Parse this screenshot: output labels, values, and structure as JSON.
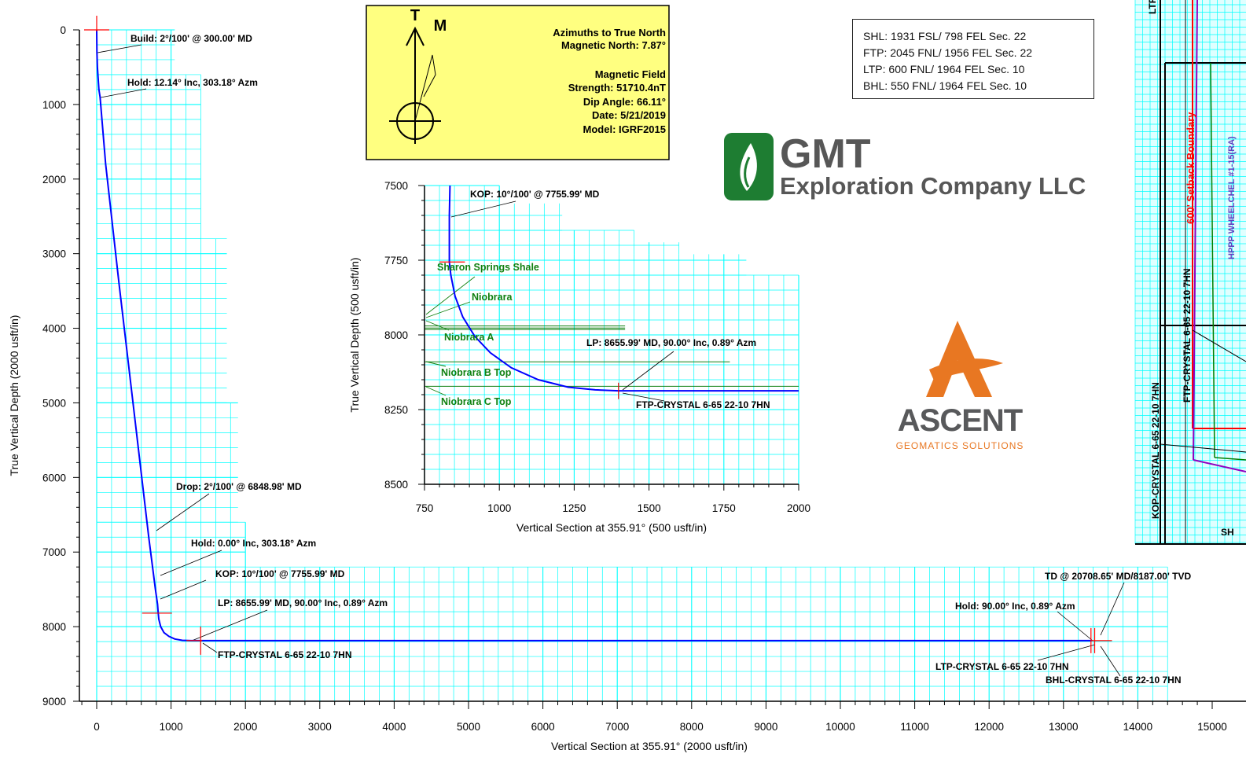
{
  "main_chart": {
    "xlabel": "Vertical Section at 355.91° (2000 usft/in)",
    "ylabel": "True Vertical Depth (2000 usft/in)"
  },
  "inset_chart": {
    "xlabel": "Vertical Section at 355.91° (500 usft/in)",
    "ylabel": "True Vertical Depth (500 usft/in)"
  },
  "main_annotations": {
    "build": "Build: 2°/100' @ 300.00' MD",
    "hold1": "Hold: 12.14° Inc, 303.18° Azm",
    "drop": "Drop: 2°/100' @ 6848.98' MD",
    "hold2": "Hold: 0.00° Inc, 303.18° Azm",
    "kop": "KOP: 10°/100' @ 7755.99' MD",
    "lp": "LP:  8655.99' MD, 90.00° Inc, 0.89° Azm",
    "ftp": "FTP-CRYSTAL  6-65  22-10  7HN",
    "td": "TD @ 20708.65' MD/8187.00' TVD",
    "hold3": "Hold: 90.00° Inc, 0.89° Azm",
    "ltp": "LTP-CRYSTAL  6-65  22-10  7HN",
    "bhl": "BHL-CRYSTAL  6-65  22-10  7HN"
  },
  "inset_annotations": {
    "kop": "KOP: 10°/100' @ 7755.99' MD",
    "sharon": "Sharon Springs Shale",
    "niobrara": "Niobrara",
    "niobrara_a": "Niobrara A",
    "lp": "LP:  8655.99' MD, 90.00° Inc, 0.89° Azm",
    "niobrara_b": "Niobrara B Top",
    "niobrara_c": "Niobrara C Top",
    "ftp": "FTP-CRYSTAL  6-65  22-10  7HN"
  },
  "north_box": {
    "t": "T",
    "m": "M",
    "lines": [
      "Azimuths to True North",
      "Magnetic North: 7.87°",
      "",
      "Magnetic Field",
      "Strength: 51710.4nT",
      "Dip Angle: 66.11°",
      "Date: 5/21/2019",
      "Model: IGRF2015"
    ]
  },
  "location_box": [
    "SHL: 1931 FSL/ 798 FEL Sec. 22",
    "FTP: 2045 FNL/ 1956 FEL Sec. 22",
    "LTP: 600 FNL/ 1964 FEL Sec. 10",
    "BHL: 550 FNL/ 1964 FEL Sec. 10"
  ],
  "logos": {
    "gmt_name": "GMT",
    "gmt_sub": "Exploration Company LLC",
    "ascent_name": "ASCENT",
    "ascent_sub": "GEOMATICS SOLUTIONS"
  },
  "plan_view": {
    "ltp_cut": "LTP",
    "setback": "600' Setback Boundary",
    "well_label": "HPPP WHEELCHEL #1-15(RA)",
    "ftp_label": "FTP-CRYSTAL  6-65  22-10  7HN",
    "kop_label": "KOP-CRYSTAL  6-65  22-10  7HN",
    "sh_cut": "SH"
  },
  "colors": {
    "grid": "#00ffff",
    "wellpath": "#0000ff",
    "marker": "#ff0000",
    "formation": "#108010",
    "north_box_bg": "#ffff80"
  },
  "chart_data": [
    {
      "type": "line",
      "name": "main_section",
      "xlabel": "Vertical Section at 355.91° (2000 usft/in)",
      "ylabel": "True Vertical Depth (2000 usft/in)",
      "xlim": [
        0,
        15000
      ],
      "ylim": [
        0,
        9000
      ],
      "y_inverted": true,
      "x_ticks": [
        0,
        1000,
        2000,
        3000,
        4000,
        5000,
        6000,
        7000,
        8000,
        9000,
        10000,
        11000,
        12000,
        13000,
        14000,
        15000
      ],
      "y_ticks": [
        0,
        1000,
        2000,
        3000,
        4000,
        5000,
        6000,
        7000,
        8000,
        9000
      ],
      "series": [
        {
          "x": [
            0,
            3,
            10,
            30,
            45,
            120,
            300,
            500,
            700,
            790,
            818,
            822,
            826,
            835,
            860,
            905,
            970,
            1050,
            1150,
            1270,
            1398,
            1600,
            3000,
            6000,
            9000,
            12000,
            13380
          ],
          "y": [
            0,
            300,
            500,
            800,
            900,
            1800,
            3400,
            5100,
            6800,
            7500,
            7700,
            7756,
            7800,
            7900,
            8000,
            8080,
            8130,
            8165,
            8183,
            8187,
            8187,
            8187,
            8187,
            8187,
            8187,
            8187,
            8187
          ]
        }
      ],
      "markers": [
        {
          "x": 0,
          "y": 0,
          "kind": "SHL"
        },
        {
          "x": 822,
          "y": 7756,
          "kind": "KOP"
        },
        {
          "x": 1398,
          "y": 8187,
          "kind": "FTP"
        },
        {
          "x": 13370,
          "y": 8187,
          "kind": "LTP"
        },
        {
          "x": 13420,
          "y": 8187,
          "kind": "BHL"
        }
      ]
    },
    {
      "type": "line",
      "name": "inset_section",
      "xlabel": "Vertical Section at 355.91° (500 usft/in)",
      "ylabel": "True Vertical Depth (500 usft/in)",
      "xlim": [
        750,
        2000
      ],
      "ylim": [
        7500,
        8500
      ],
      "y_inverted": true,
      "x_ticks": [
        750,
        1000,
        1250,
        1500,
        1750,
        2000
      ],
      "y_ticks": [
        7500,
        7750,
        8000,
        8250,
        8500
      ],
      "series": [
        {
          "x": [
            835,
            833,
            833,
            838,
            852,
            878,
            918,
            970,
            1040,
            1130,
            1230,
            1320,
            1398,
            2000
          ],
          "y": [
            7500,
            7600,
            7756,
            7800,
            7870,
            7940,
            8005,
            8060,
            8110,
            8150,
            8175,
            8184,
            8187,
            8187
          ]
        }
      ],
      "formations": [
        {
          "name": "Sharon Springs Shale",
          "tvd": 7970,
          "x_end": 1420
        },
        {
          "name": "Niobrara",
          "tvd": 7977,
          "x_end": 1420
        },
        {
          "name": "Niobrara A",
          "tvd": 7982,
          "x_end": 1420
        },
        {
          "name": "Niobrara B Top",
          "tvd": 8090,
          "x_end": 1770
        },
        {
          "name": "Niobrara C Top",
          "tvd": 8172,
          "x_end": 2000
        }
      ]
    }
  ]
}
